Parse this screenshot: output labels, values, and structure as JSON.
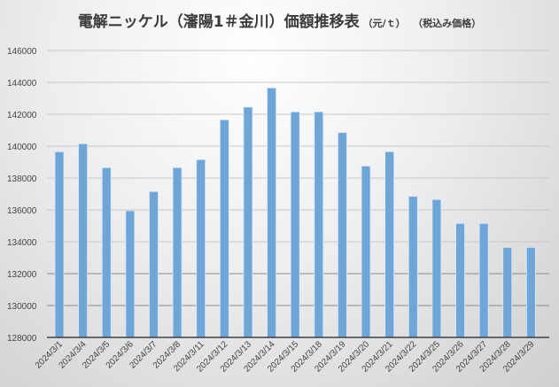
{
  "chart_data": {
    "type": "bar",
    "title": "電解ニッケル（瀋陽1＃金川）価額推移表",
    "unit": "（元/ｔ）",
    "note": "（税込み価格）",
    "xlabel": "",
    "ylabel": "",
    "ylim": [
      128000,
      146000
    ],
    "ytick_step": 2000,
    "yticks": [
      "128000",
      "130000",
      "132000",
      "134000",
      "136000",
      "138000",
      "140000",
      "142000",
      "144000",
      "146000"
    ],
    "grid": true,
    "legend": "none",
    "bar_color": "#6fa6d9",
    "categories": [
      "2024/3/1",
      "2024/3/4",
      "2024/3/5",
      "2024/3/6",
      "2024/3/7",
      "2024/3/8",
      "2024/3/11",
      "2024/3/12",
      "2024/3/13",
      "2024/3/14",
      "2024/3/15",
      "2024/3/18",
      "2024/3/19",
      "2024/3/20",
      "2024/3/21",
      "2024/3/22",
      "2024/3/25",
      "2024/3/26",
      "2024/3/27",
      "2024/3/28",
      "2024/3/29"
    ],
    "values": [
      139650,
      140150,
      138650,
      135950,
      137150,
      138650,
      139150,
      141650,
      142450,
      143650,
      142150,
      142150,
      140850,
      138750,
      139650,
      136850,
      136650,
      135150,
      135150,
      133650,
      133650
    ]
  }
}
